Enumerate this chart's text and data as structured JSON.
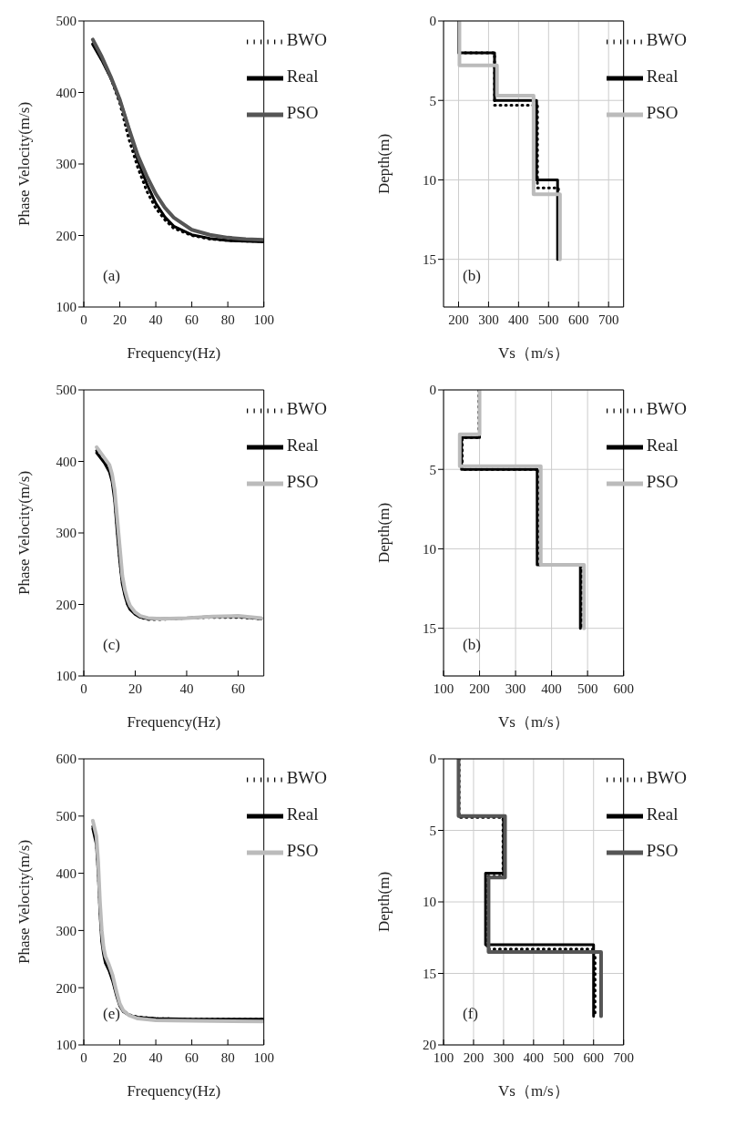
{
  "chart_data": [
    {
      "type": "line",
      "xlabel": "Frequency(Hz)",
      "ylabel": "Phase Velocity(m/s)",
      "xlim": [
        0,
        100
      ],
      "xticks": [
        0,
        20,
        40,
        60,
        80,
        100
      ],
      "ylim": [
        100,
        500
      ],
      "yticks": [
        100,
        200,
        300,
        400,
        500
      ],
      "grid": false,
      "legend": "top right",
      "annotations": [
        "(a)"
      ],
      "series": [
        {
          "name": "BWO",
          "color": "#000000",
          "line_style": "dotted",
          "x": [
            5,
            10,
            15,
            20,
            25,
            30,
            35,
            40,
            45,
            50,
            60,
            70,
            80,
            90,
            100
          ],
          "values": [
            468,
            447,
            420,
            385,
            335,
            295,
            262,
            238,
            222,
            210,
            200,
            195,
            193,
            192,
            192
          ]
        },
        {
          "name": "Real",
          "color": "#000000",
          "line_style": "solid",
          "x": [
            5,
            10,
            15,
            20,
            25,
            30,
            35,
            40,
            45,
            50,
            60,
            70,
            80,
            90,
            100
          ],
          "values": [
            467,
            445,
            420,
            390,
            350,
            305,
            272,
            245,
            226,
            213,
            201,
            196,
            193,
            192,
            191
          ]
        },
        {
          "name": "PSO",
          "color": "#555555",
          "line_style": "solid",
          "x": [
            5,
            10,
            15,
            20,
            25,
            30,
            35,
            40,
            45,
            50,
            60,
            70,
            80,
            90,
            100
          ],
          "values": [
            474,
            450,
            422,
            390,
            350,
            312,
            283,
            258,
            239,
            225,
            208,
            201,
            197,
            195,
            194
          ]
        }
      ]
    },
    {
      "type": "line",
      "xlabel": "Vs（m/s）",
      "ylabel": "Depth(m)",
      "xlim": [
        150,
        750
      ],
      "xticks": [
        200,
        300,
        400,
        500,
        600,
        700
      ],
      "ylim": [
        18,
        0
      ],
      "yticks": [
        0,
        5,
        10,
        15
      ],
      "grid": true,
      "legend": "top right",
      "annotations": [
        "(b)"
      ],
      "series": [
        {
          "name": "BWO",
          "color": "#000000",
          "line_style": "dotted",
          "x": [
            200,
            200,
            320,
            320,
            463,
            463,
            533,
            533
          ],
          "values": [
            0,
            2,
            2,
            5.3,
            5.3,
            10.5,
            10.5,
            15
          ]
        },
        {
          "name": "Real",
          "color": "#000000",
          "line_style": "solid",
          "x": [
            200,
            200,
            320,
            320,
            460,
            460,
            530,
            530
          ],
          "values": [
            0,
            2,
            2,
            5,
            5,
            10,
            10,
            15
          ]
        },
        {
          "name": "PSO",
          "color": "#bbbbbb",
          "line_style": "solid",
          "x": [
            203,
            203,
            328,
            328,
            450,
            450,
            538,
            538
          ],
          "values": [
            0,
            2.8,
            2.8,
            4.7,
            4.7,
            10.9,
            10.9,
            15
          ]
        }
      ]
    },
    {
      "type": "line",
      "xlabel": "Frequency(Hz)",
      "ylabel": "Phase Velocity(m/s)",
      "xlim": [
        0,
        70
      ],
      "xticks": [
        0,
        20,
        40,
        60
      ],
      "ylim": [
        100,
        500
      ],
      "yticks": [
        100,
        200,
        300,
        400,
        500
      ],
      "grid": false,
      "legend": "top right",
      "annotations": [
        "(c)"
      ],
      "series": [
        {
          "name": "BWO",
          "color": "#000000",
          "line_style": "dotted",
          "x": [
            5,
            8,
            10,
            11,
            12,
            13,
            14,
            15,
            16,
            17,
            18,
            20,
            22,
            25,
            30,
            40,
            50,
            60,
            69
          ],
          "values": [
            415,
            400,
            388,
            375,
            350,
            305,
            262,
            230,
            213,
            201,
            194,
            187,
            182,
            179,
            179,
            181,
            182,
            182,
            180
          ]
        },
        {
          "name": "Real",
          "color": "#000000",
          "line_style": "solid",
          "x": [
            5,
            8,
            10,
            11,
            12,
            13,
            14,
            15,
            16,
            17,
            18,
            20,
            22,
            25,
            30,
            40,
            50,
            60,
            69
          ],
          "values": [
            412,
            398,
            385,
            372,
            345,
            300,
            260,
            228,
            212,
            200,
            193,
            186,
            182,
            180,
            180,
            181,
            183,
            183,
            180
          ]
        },
        {
          "name": "PSO",
          "color": "#bbbbbb",
          "line_style": "solid",
          "x": [
            5,
            8,
            10,
            11,
            12,
            13,
            14,
            15,
            16,
            17,
            18,
            20,
            22,
            25,
            30,
            40,
            50,
            60,
            69
          ],
          "values": [
            420,
            405,
            395,
            382,
            360,
            320,
            280,
            240,
            220,
            207,
            198,
            189,
            184,
            181,
            180,
            181,
            183,
            184,
            181
          ]
        }
      ]
    },
    {
      "type": "line",
      "xlabel": "Vs（m/s）",
      "ylabel": "Depth(m)",
      "xlim": [
        100,
        600
      ],
      "xticks": [
        100,
        200,
        300,
        400,
        500,
        600
      ],
      "ylim": [
        18,
        0
      ],
      "yticks": [
        0,
        5,
        10,
        15
      ],
      "grid": true,
      "legend": "top right",
      "annotations": [
        "(b)"
      ],
      "series": [
        {
          "name": "BWO",
          "color": "#000000",
          "line_style": "dotted",
          "x": [
            198,
            198,
            152,
            152,
            367,
            367,
            485,
            485
          ],
          "values": [
            0,
            3,
            3,
            5,
            5,
            11,
            11,
            15
          ]
        },
        {
          "name": "Real",
          "color": "#000000",
          "line_style": "solid",
          "x": [
            200,
            200,
            150,
            150,
            360,
            360,
            480,
            480
          ],
          "values": [
            0,
            3,
            3,
            5,
            5,
            11,
            11,
            15
          ]
        },
        {
          "name": "PSO",
          "color": "#bbbbbb",
          "line_style": "solid",
          "x": [
            200,
            200,
            145,
            145,
            370,
            370,
            490,
            490
          ],
          "values": [
            0,
            2.8,
            2.8,
            4.8,
            4.8,
            11,
            11,
            15
          ]
        }
      ]
    },
    {
      "type": "line",
      "xlabel": "Frequency(Hz)",
      "ylabel": "Phase Velocity(m/s)",
      "xlim": [
        0,
        100
      ],
      "xticks": [
        0,
        20,
        40,
        60,
        80,
        100
      ],
      "ylim": [
        100,
        600
      ],
      "yticks": [
        100,
        200,
        300,
        400,
        500,
        600
      ],
      "grid": false,
      "legend": "top right",
      "annotations": [
        "(e)"
      ],
      "series": [
        {
          "name": "BWO",
          "color": "#000000",
          "line_style": "dotted",
          "x": [
            5,
            7,
            8,
            9,
            10,
            11,
            12,
            14,
            16,
            18,
            20,
            22,
            25,
            30,
            40,
            60,
            100
          ],
          "values": [
            482,
            455,
            405,
            335,
            285,
            260,
            245,
            232,
            214,
            190,
            170,
            160,
            153,
            149,
            146,
            145,
            145
          ]
        },
        {
          "name": "Real",
          "color": "#000000",
          "line_style": "solid",
          "x": [
            5,
            7,
            8,
            9,
            10,
            11,
            12,
            14,
            16,
            18,
            20,
            22,
            25,
            30,
            40,
            60,
            100
          ],
          "values": [
            478,
            450,
            400,
            330,
            280,
            258,
            243,
            230,
            212,
            188,
            168,
            158,
            152,
            148,
            146,
            145,
            145
          ]
        },
        {
          "name": "PSO",
          "color": "#bbbbbb",
          "line_style": "solid",
          "x": [
            5,
            7,
            8,
            9,
            10,
            11,
            12,
            14,
            16,
            18,
            20,
            22,
            25,
            30,
            40,
            60,
            100
          ],
          "values": [
            492,
            465,
            420,
            350,
            300,
            270,
            255,
            240,
            222,
            195,
            172,
            160,
            152,
            146,
            143,
            142,
            141
          ]
        }
      ]
    },
    {
      "type": "line",
      "xlabel": "Vs（m/s）",
      "ylabel": "Depth(m)",
      "xlim": [
        100,
        700
      ],
      "xticks": [
        100,
        200,
        300,
        400,
        500,
        600,
        700
      ],
      "ylim": [
        20,
        0
      ],
      "yticks": [
        0,
        5,
        10,
        15,
        20
      ],
      "grid": true,
      "legend": "top right",
      "annotations": [
        "(f)"
      ],
      "series": [
        {
          "name": "BWO",
          "color": "#000000",
          "line_style": "dotted",
          "x": [
            152,
            152,
            298,
            298,
            245,
            245,
            605,
            605
          ],
          "values": [
            0,
            4.1,
            4.1,
            8.2,
            8.2,
            13.3,
            13.3,
            18
          ]
        },
        {
          "name": "Real",
          "color": "#000000",
          "line_style": "solid",
          "x": [
            150,
            150,
            300,
            300,
            240,
            240,
            600,
            600
          ],
          "values": [
            0,
            4,
            4,
            8,
            8,
            13,
            13,
            18
          ]
        },
        {
          "name": "PSO",
          "color": "#555555",
          "line_style": "solid",
          "x": [
            150,
            150,
            305,
            305,
            250,
            250,
            625,
            625
          ],
          "values": [
            0,
            4,
            4,
            8.3,
            8.3,
            13.5,
            13.5,
            18
          ]
        }
      ]
    }
  ]
}
